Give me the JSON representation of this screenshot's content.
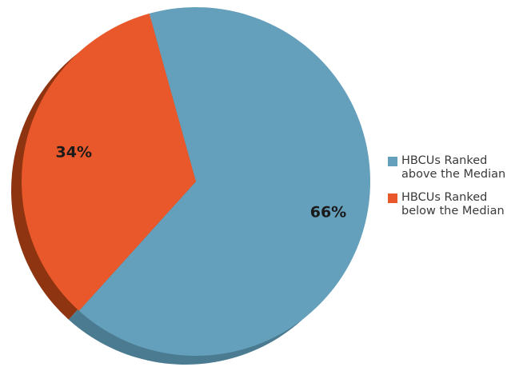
{
  "chart_data": {
    "type": "pie",
    "title": "",
    "slices": [
      {
        "label": "HBCUs Ranked above the Median",
        "value": 66,
        "display": "66%",
        "color": "#649fbb",
        "shadow_color": "#4a7b91"
      },
      {
        "label": "HBCUs Ranked below the Median",
        "value": 34,
        "display": "34%",
        "color": "#e9582b",
        "shadow_color": "#8e3410"
      }
    ],
    "legend": {
      "placement": "right",
      "items": [
        {
          "line1": "HBCUs Ranked",
          "line2": "above the Median",
          "color": "#649fbb"
        },
        {
          "line1": "HBCUs Ranked",
          "line2": "below the Median",
          "color": "#e9582b"
        }
      ]
    }
  }
}
